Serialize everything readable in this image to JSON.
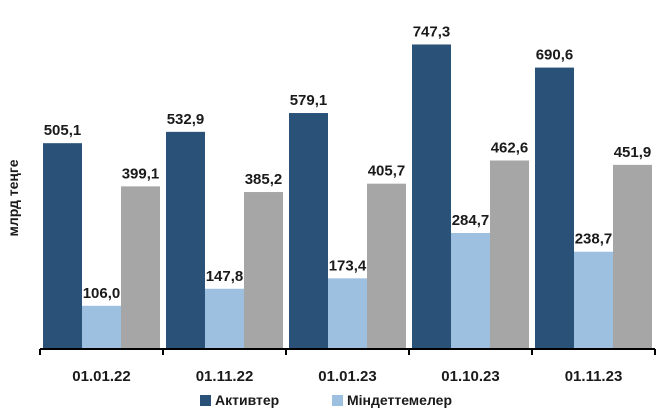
{
  "chart_data": {
    "type": "bar",
    "ylabel": "млрд теңге",
    "categories": [
      "01.01.22",
      "01.11.22",
      "01.01.23",
      "01.10.23",
      "01.11.23"
    ],
    "series": [
      {
        "name": "Активтер",
        "color": "#2a5279",
        "values": [
          505.1,
          532.9,
          579.1,
          747.3,
          690.6
        ],
        "labels": [
          "505,1",
          "532,9",
          "579,1",
          "747,3",
          "690,6"
        ]
      },
      {
        "name": "Міндеттемелер",
        "color": "#9dbfe0",
        "values": [
          106.0,
          147.8,
          173.4,
          284.7,
          238.7
        ],
        "labels": [
          "106,0",
          "147,8",
          "173,4",
          "284,7",
          "238,7"
        ]
      },
      {
        "name": "",
        "color": "#a6a6a6",
        "values": [
          399.1,
          385.2,
          405.7,
          462.6,
          451.9
        ],
        "labels": [
          "399,1",
          "385,2",
          "405,7",
          "462,6",
          "451,9"
        ]
      }
    ],
    "ylim": [
      0,
      800
    ],
    "grid": false,
    "legend_position": "bottom"
  }
}
